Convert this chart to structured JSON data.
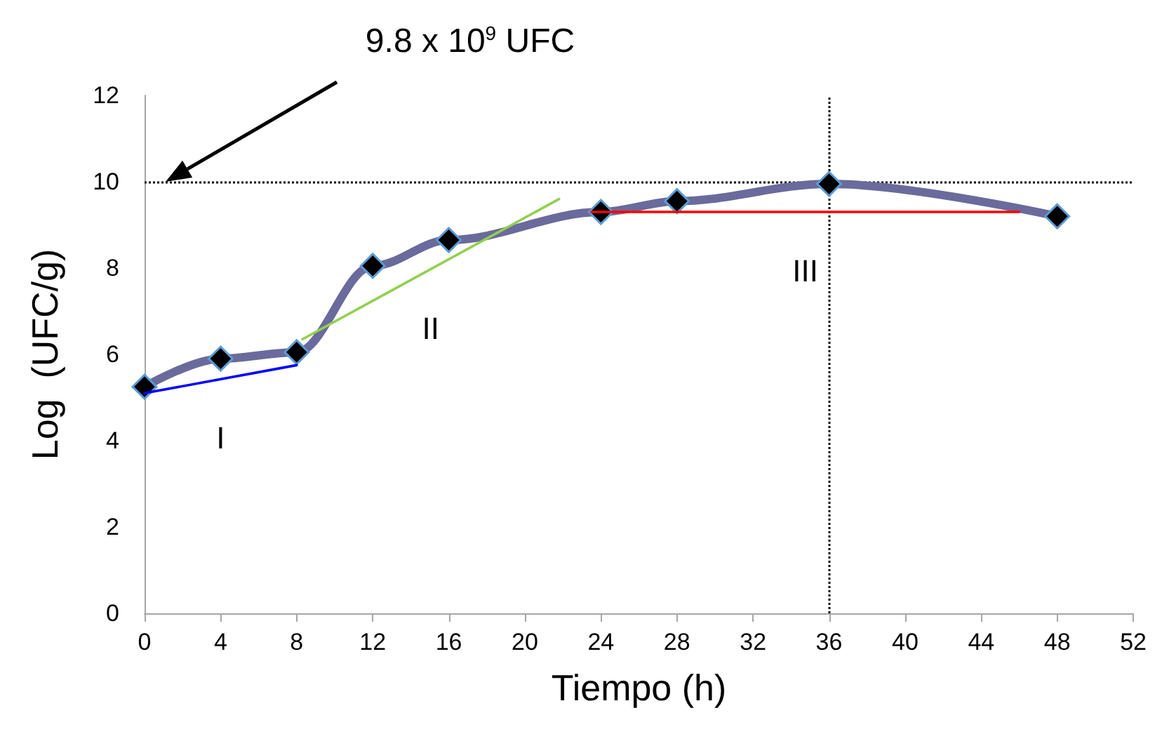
{
  "chart_data": {
    "type": "line",
    "xlabel": "Tiempo (h)",
    "ylabel": "Log  (UFC/g)",
    "x": [
      0,
      4,
      8,
      12,
      16,
      24,
      28,
      36,
      48
    ],
    "series": [
      {
        "color": "#6a6a9c",
        "values": [
          5.25,
          5.9,
          6.05,
          8.05,
          8.65,
          9.3,
          9.55,
          9.95,
          9.2
        ],
        "marker": "diamond",
        "line_style": "solid"
      },
      {
        "type": "line",
        "name": "I",
        "color": "#0000ff",
        "x": [
          0,
          8
        ],
        "values": [
          5.1,
          5.75
        ],
        "marker": "none"
      },
      {
        "type": "line",
        "name": "II",
        "color": "#92d050",
        "x": [
          8.3,
          21.8
        ],
        "values": [
          6.35,
          9.6
        ],
        "marker": "none"
      },
      {
        "type": "line",
        "name": "III",
        "color": "#ff0000",
        "x": [
          23.5,
          46
        ],
        "values": [
          9.3,
          9.3
        ],
        "marker": "none"
      }
    ],
    "xlim": [
      0,
      52
    ],
    "xticks": [
      0,
      4,
      8,
      12,
      16,
      20,
      24,
      28,
      32,
      36,
      40,
      44,
      48,
      52
    ],
    "ylim": [
      0,
      12
    ],
    "yticks": [
      0,
      2,
      4,
      6,
      8,
      10,
      12
    ],
    "ref_lines": [
      {
        "axis": "y",
        "value": 10,
        "color": "#000000",
        "line_style": "dotted"
      },
      {
        "axis": "x",
        "value": 36,
        "color": "#000000",
        "line_style": "dotted"
      }
    ],
    "annotations": [
      "9.8 x 10$^{9}$ UFC"
    ],
    "grid": false,
    "legend": false
  }
}
